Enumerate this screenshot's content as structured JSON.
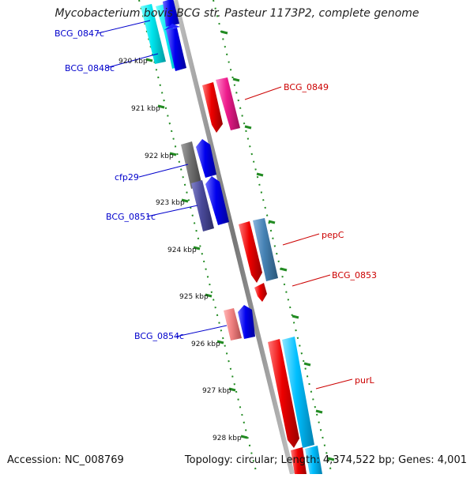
{
  "title": "Mycobacterium bovis BCG str. Pasteur 1173P2, complete genome",
  "footer": {
    "accession": "Accession: NC_008769",
    "summary": "Topology: circular; Length: 4,374,522 bp; Genes: 4,001"
  },
  "ticks": [
    "920 kbp",
    "921 kbp",
    "922 kbp",
    "923 kbp",
    "924 kbp",
    "925 kbp",
    "926 kbp",
    "927 kbp",
    "928 kbp"
  ],
  "genes_reverse": [
    "BCG_0847c",
    "BCG_0848c",
    "cfp29",
    "BCG_0851c",
    "BCG_0854c"
  ],
  "genes_forward": [
    "BCG_0849",
    "pepC",
    "BCG_0853",
    "purL"
  ],
  "colors": {
    "reverse_label": "#0000cc",
    "forward_label": "#cc0000",
    "backbone": "#888888",
    "tick": "#228B22",
    "blue": "#0000ee",
    "red": "#ee0000",
    "cyan": "#00e5ee",
    "pink": "#ee1a8c",
    "gray": "#707070",
    "slate": "#4a4a9a",
    "steelblue": "#4682b4",
    "salmon": "#f08080",
    "skyblue": "#00bfff"
  }
}
